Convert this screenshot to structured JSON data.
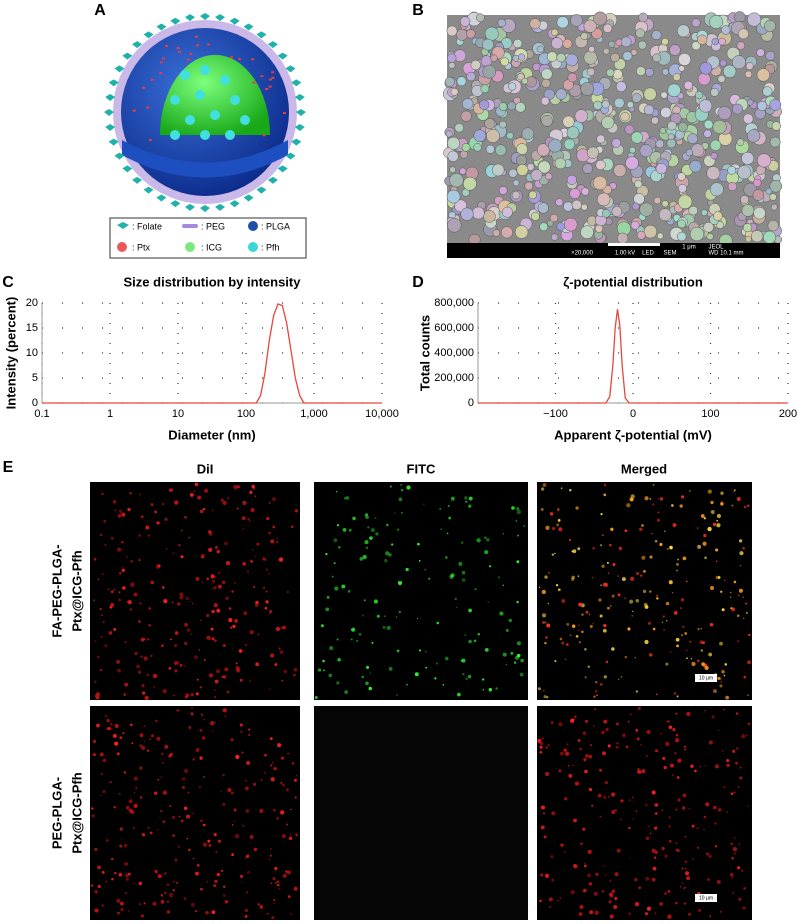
{
  "panel_labels": [
    "A",
    "B",
    "C",
    "D",
    "E"
  ],
  "panel_a": {
    "legend": [
      ": Folate",
      ": PEG",
      ": PLGA",
      ": Ptx",
      ": ICG",
      ": Pfh"
    ]
  },
  "panel_b": {
    "sem_info": [
      "×20,000",
      "1.00 kV",
      "LED",
      "SEM",
      "1 μm",
      "JEOL",
      "WD 10.1 mm"
    ]
  },
  "chart_data": [
    {
      "type": "line",
      "title": "Size distribution by intensity",
      "x_label": "Diameter (nm)",
      "y_label": "Intensity (percent)",
      "xscale": "log",
      "grid": true,
      "color": "#e8463c",
      "x": [
        0.1,
        142,
        164,
        190,
        220,
        255,
        295,
        342,
        396,
        459,
        531,
        615,
        712,
        10000
      ],
      "values": [
        0,
        0,
        1.5,
        6,
        12.5,
        17.5,
        19.8,
        19.5,
        16,
        10.5,
        5,
        1.5,
        0,
        0
      ],
      "xlim": [
        0.1,
        10000
      ],
      "xticks": [
        0.1,
        1,
        10,
        100,
        {
          "value": 1000,
          "label": "1,000"
        },
        {
          "value": 10000,
          "label": "10,000"
        }
      ],
      "ylim": [
        0,
        20
      ],
      "yticks": [
        0,
        5,
        10,
        15,
        20
      ]
    },
    {
      "type": "line",
      "title": "ζ-potential distribution",
      "x_label": "Apparent ζ-potential (mV)",
      "y_label": "Total counts",
      "grid": true,
      "color": "#e8463c",
      "x": [
        -200,
        -35,
        -30,
        -26,
        -23,
        -20,
        -17,
        -14,
        -10,
        -5,
        200
      ],
      "values": [
        0,
        0,
        50000,
        300000,
        600000,
        750000,
        620000,
        300000,
        40000,
        0,
        0
      ],
      "xlim": [
        -200,
        200
      ],
      "xticks": [
        {
          "value": -100,
          "label": "−100"
        },
        0,
        100,
        200
      ],
      "ylim": [
        0,
        800000
      ],
      "yticks": [
        0,
        {
          "value": 200000,
          "label": "200,000"
        },
        {
          "value": 400000,
          "label": "400,000"
        },
        {
          "value": 600000,
          "label": "600,000"
        },
        {
          "value": 800000,
          "label": "800,000"
        }
      ]
    }
  ],
  "panel_e": {
    "columns": [
      "DiI",
      "FITC",
      "Merged"
    ],
    "rows": [
      {
        "lines": [
          "FA-PEG-PLGA-",
          "Ptx@ICG-Pfh"
        ]
      },
      {
        "lines": [
          "PEG-PLGA-",
          "Ptx@ICG-Pfh"
        ]
      }
    ],
    "scale_bar": "10 μm"
  }
}
